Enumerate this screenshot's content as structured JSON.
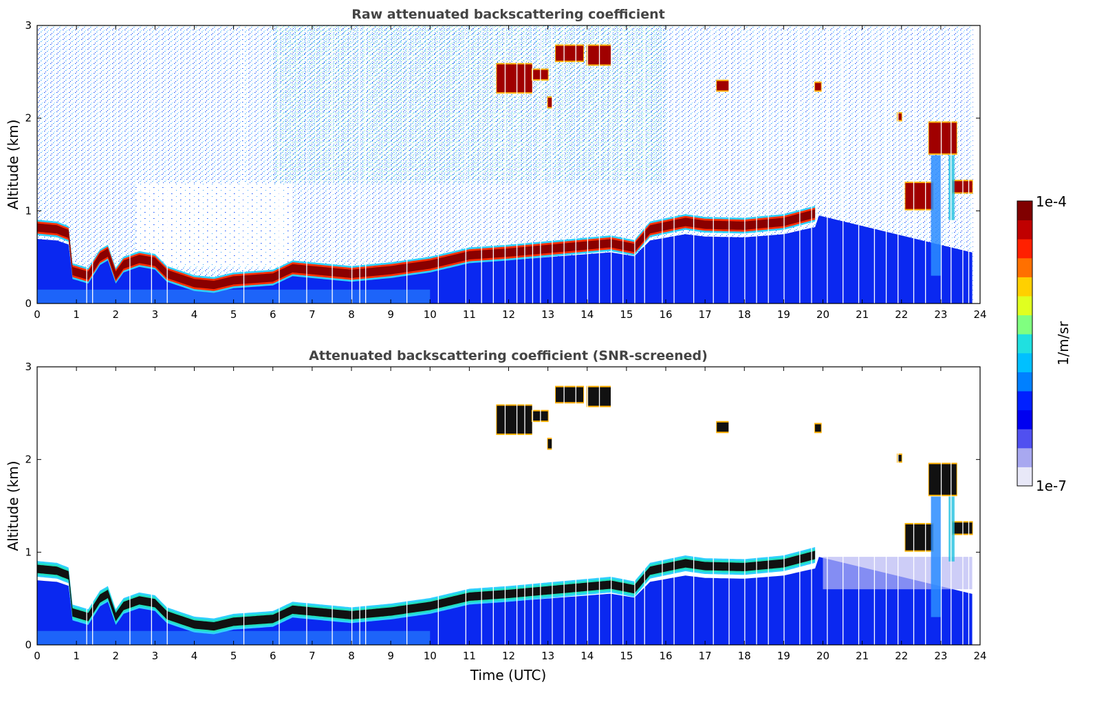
{
  "chart_data": [
    {
      "type": "heatmap",
      "title": "Raw attenuated backscattering coefficient",
      "xlabel": "",
      "ylabel": "Altitude (km)",
      "xlim": [
        0,
        24
      ],
      "ylim": [
        0,
        3
      ],
      "x_ticks": [
        "0",
        "1",
        "2",
        "3",
        "4",
        "5",
        "6",
        "7",
        "8",
        "9",
        "10",
        "11",
        "12",
        "13",
        "14",
        "15",
        "16",
        "17",
        "18",
        "19",
        "20",
        "21",
        "22",
        "23",
        "24"
      ],
      "y_ticks": [
        "0",
        "1",
        "2",
        "3"
      ],
      "boundary_layer_top_km": [
        [
          0.0,
          0.82
        ],
        [
          0.5,
          0.8
        ],
        [
          0.8,
          0.75
        ],
        [
          0.9,
          0.35
        ],
        [
          1.3,
          0.3
        ],
        [
          1.6,
          0.5
        ],
        [
          1.8,
          0.55
        ],
        [
          2.0,
          0.3
        ],
        [
          2.2,
          0.42
        ],
        [
          2.6,
          0.48
        ],
        [
          3.0,
          0.45
        ],
        [
          3.3,
          0.32
        ],
        [
          4.0,
          0.22
        ],
        [
          4.5,
          0.2
        ],
        [
          5.0,
          0.25
        ],
        [
          6.0,
          0.28
        ],
        [
          6.5,
          0.38
        ],
        [
          7.0,
          0.36
        ],
        [
          8.0,
          0.32
        ],
        [
          9.0,
          0.36
        ],
        [
          10.0,
          0.42
        ],
        [
          11.0,
          0.52
        ],
        [
          12.0,
          0.55
        ],
        [
          14.6,
          0.65
        ],
        [
          15.2,
          0.6
        ],
        [
          15.6,
          0.8
        ],
        [
          16.5,
          0.88
        ],
        [
          17.0,
          0.85
        ],
        [
          18.0,
          0.84
        ],
        [
          19.0,
          0.88
        ],
        [
          19.8,
          0.97
        ]
      ],
      "cloud_layers": [
        {
          "x": [
            11.7,
            12.6
          ],
          "y": [
            2.28,
            2.58
          ]
        },
        {
          "x": [
            12.6,
            13.0
          ],
          "y": [
            2.42,
            2.52
          ]
        },
        {
          "x": [
            13.0,
            13.1
          ],
          "y": [
            2.12,
            2.22
          ]
        },
        {
          "x": [
            13.2,
            13.9
          ],
          "y": [
            2.62,
            2.78
          ]
        },
        {
          "x": [
            14.0,
            14.6
          ],
          "y": [
            2.58,
            2.78
          ]
        },
        {
          "x": [
            17.3,
            17.6
          ],
          "y": [
            2.3,
            2.4
          ]
        },
        {
          "x": [
            19.8,
            19.95
          ],
          "y": [
            2.3,
            2.38
          ]
        },
        {
          "x": [
            21.9,
            22.0
          ],
          "y": [
            1.98,
            2.05
          ]
        },
        {
          "x": [
            22.7,
            23.4
          ],
          "y": [
            1.62,
            1.95
          ]
        },
        {
          "x": [
            22.1,
            22.8
          ],
          "y": [
            1.02,
            1.3
          ]
        },
        {
          "x": [
            23.3,
            23.8
          ],
          "y": [
            1.2,
            1.32
          ]
        }
      ]
    },
    {
      "type": "heatmap",
      "title": "Attenuated backscattering coefficient (SNR-screened)",
      "xlabel": "Time (UTC)",
      "ylabel": "Altitude (km)",
      "xlim": [
        0,
        24
      ],
      "ylim": [
        0,
        3
      ],
      "x_ticks": [
        "0",
        "1",
        "2",
        "3",
        "4",
        "5",
        "6",
        "7",
        "8",
        "9",
        "10",
        "11",
        "12",
        "13",
        "14",
        "15",
        "16",
        "17",
        "18",
        "19",
        "20",
        "21",
        "22",
        "23",
        "24"
      ],
      "y_ticks": [
        "0",
        "1",
        "2",
        "3"
      ],
      "note_saturation": "black"
    }
  ],
  "colorbar": {
    "label": "1/m/sr",
    "max_label": "1e-4",
    "min_label": "1e-7",
    "colors": [
      "#e8e8f8",
      "#a8a8f0",
      "#5050f0",
      "#0000f0",
      "#0020ff",
      "#0080ff",
      "#00c0ff",
      "#20e0e0",
      "#80ff80",
      "#e0ff20",
      "#ffd000",
      "#ff7000",
      "#ff2000",
      "#c00000",
      "#800000"
    ]
  }
}
